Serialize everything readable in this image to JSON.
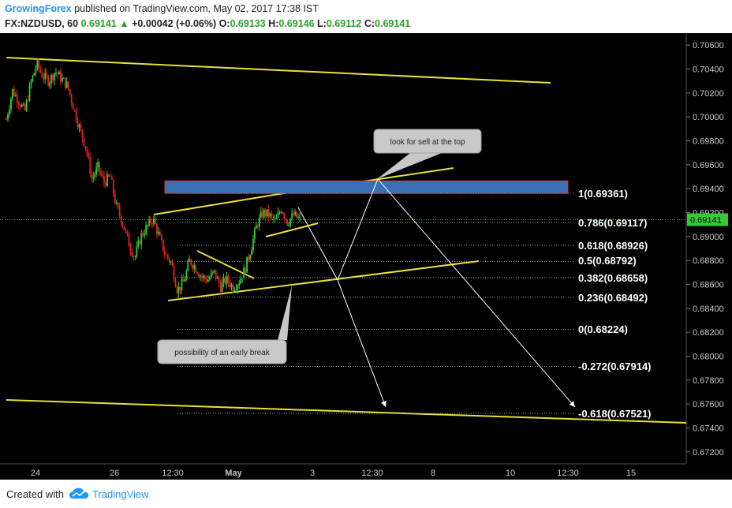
{
  "header": {
    "author": "GrowingForex",
    "published_text": "published on TradingView.com, May 02, 2017 17:38 IST",
    "symbol": "FX:NZDUSD, 60",
    "last": "0.69141",
    "change_arrow": "▲",
    "change": "+0.00042 (+0.06%)",
    "o_label": "O:",
    "o_value": "0.69133",
    "h_label": "H:",
    "h_value": "0.69146",
    "l_label": "L:",
    "l_value": "0.69112",
    "c_label": "C:",
    "c_value": "0.69141"
  },
  "footer": {
    "created_with": "Created with",
    "brand": "TradingView",
    "logo_icon": "tradingview-cloud-icon"
  },
  "colors": {
    "background": "#000000",
    "candle_up": "#33cc33",
    "candle_down": "#e32222",
    "trendline": "#e8e03a",
    "zone_fill": "#3a6fb5",
    "zone_border": "#e03030",
    "price_tag": "#33cc33",
    "callout": "#c8c8c8",
    "axis_text": "#c8c8c8"
  },
  "chart_data": {
    "type": "candlestick",
    "ylim": [
      0.671,
      0.707
    ],
    "y_ticks": [
      "0.70600",
      "0.70400",
      "0.70200",
      "0.70000",
      "0.69800",
      "0.69600",
      "0.69400",
      "0.69200",
      "0.69000",
      "0.68800",
      "0.68600",
      "0.68400",
      "0.68200",
      "0.68000",
      "0.67800",
      "0.67600",
      "0.67400",
      "0.67200"
    ],
    "x_ticks": [
      "24",
      "26",
      "12:30",
      "May",
      "3",
      "12:30",
      "8",
      "10",
      "12:30",
      "15"
    ],
    "last_price": "0.69141",
    "price_path": [
      0.6998,
      0.7022,
      0.7014,
      0.7004,
      0.7028,
      0.7044,
      0.7034,
      0.703,
      0.7038,
      0.7032,
      0.7026,
      0.7008,
      0.699,
      0.6975,
      0.6948,
      0.6958,
      0.6945,
      0.695,
      0.6925,
      0.6912,
      0.6895,
      0.6882,
      0.69,
      0.6908,
      0.6915,
      0.69,
      0.6885,
      0.6878,
      0.6855,
      0.6862,
      0.688,
      0.6874,
      0.6866,
      0.6864,
      0.687,
      0.6858,
      0.6864,
      0.6858,
      0.6862,
      0.6872,
      0.689,
      0.691,
      0.692,
      0.6918,
      0.6912,
      0.6924,
      0.6912,
      0.6918,
      0.6914
    ],
    "fibonacci": [
      {
        "label": "1(0.69361)",
        "price": 0.69361
      },
      {
        "label": "0.786(0.69117)",
        "price": 0.69117
      },
      {
        "label": "0.618(0.68926)",
        "price": 0.68926
      },
      {
        "label": "0.5(0.68792)",
        "price": 0.68792
      },
      {
        "label": "0.382(0.68658)",
        "price": 0.68658
      },
      {
        "label": "0.236(0.68492)",
        "price": 0.68492
      },
      {
        "label": "0(0.68224)",
        "price": 0.68224
      },
      {
        "label": "-0.272(0.67914)",
        "price": 0.67914
      },
      {
        "label": "-0.618(0.67521)",
        "price": 0.67521
      }
    ],
    "supply_zone": {
      "top": 0.69465,
      "bottom": 0.69361
    },
    "annotations": [
      {
        "text": "look for sell at the top"
      },
      {
        "text": "possibility of an early break"
      }
    ]
  }
}
